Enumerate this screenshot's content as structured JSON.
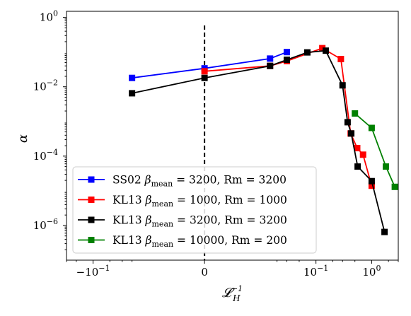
{
  "chart_data": {
    "type": "line",
    "xlabel": "𝓛_H^{-1}",
    "ylabel": "α",
    "xscale": "symlog",
    "yscale": "log",
    "xlim": [
      -0.3,
      3.0
    ],
    "ylim": [
      1e-07,
      1.5
    ],
    "xticks": [
      {
        "value": -0.1,
        "label": "−10",
        "exp": "−1"
      },
      {
        "value": 0,
        "label": "0",
        "exp": ""
      },
      {
        "value": 0.1,
        "label": "10",
        "exp": "−1"
      },
      {
        "value": 1,
        "label": "10",
        "exp": "0"
      }
    ],
    "yticks": [
      {
        "value": 1,
        "label": "10",
        "exp": "0"
      },
      {
        "value": 0.01,
        "label": "10",
        "exp": "−2"
      },
      {
        "value": 0.0001,
        "label": "10",
        "exp": "−4"
      },
      {
        "value": 1e-06,
        "label": "10",
        "exp": "−6"
      }
    ],
    "vline": {
      "x": 0,
      "style": "dashed",
      "color": "#000000"
    },
    "legend_position": "lower-left",
    "series": [
      {
        "name": "SS02 β_mean = 3200, Rm = 3200",
        "color": "#0000ff",
        "x": [
          -0.02,
          0.0,
          0.015,
          0.03
        ],
        "y": [
          0.018,
          0.034,
          0.065,
          0.1
        ]
      },
      {
        "name": "KL13 β_mean = 1000, Rm = 1000",
        "color": "#ff0000",
        "x": [
          0.0,
          0.015,
          0.03,
          0.13,
          0.28,
          0.42,
          0.55,
          0.7,
          1.0
        ],
        "y": [
          0.028,
          0.04,
          0.055,
          0.13,
          0.063,
          0.00045,
          0.00017,
          0.00011,
          1.4e-05
        ]
      },
      {
        "name": "KL13 β_mean = 3200, Rm = 3200",
        "color": "#000000",
        "x": [
          -0.02,
          0.0,
          0.015,
          0.03,
          0.07,
          0.15,
          0.3,
          0.37,
          0.43,
          0.56,
          1.0,
          1.7
        ],
        "y": [
          0.0065,
          0.018,
          0.04,
          0.06,
          0.098,
          0.11,
          0.011,
          0.00095,
          0.00045,
          5e-05,
          1.9e-05,
          6.5e-07
        ]
      },
      {
        "name": "KL13 β_mean = 10000, Rm = 200",
        "color": "#008000",
        "x": [
          0.5,
          1.0,
          1.8,
          2.6
        ],
        "y": [
          0.0017,
          0.00065,
          5e-05,
          1.3e-05
        ]
      }
    ],
    "legend": [
      {
        "prefix": "SS02",
        "beta": "3200",
        "rm": "3200"
      },
      {
        "prefix": "KL13",
        "beta": "1000",
        "rm": "1000"
      },
      {
        "prefix": "KL13",
        "beta": "3200",
        "rm": "3200"
      },
      {
        "prefix": "KL13",
        "beta": "10000",
        "rm": "200"
      }
    ]
  }
}
